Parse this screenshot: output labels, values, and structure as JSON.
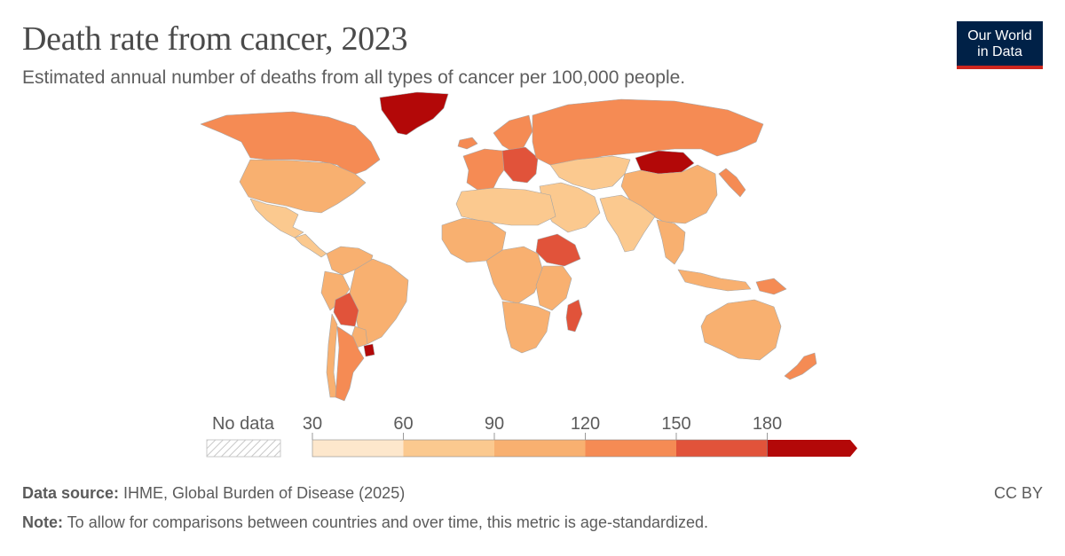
{
  "title": "Death rate from cancer, 2023",
  "subtitle": "Estimated annual number of deaths from all types of cancer per 100,000 people.",
  "logo": {
    "line1": "Our World",
    "line2": "in Data",
    "background": "#002147",
    "accent": "#ce261e"
  },
  "legend": {
    "no_data_label": "No data",
    "ticks": [
      "30",
      "60",
      "90",
      "120",
      "150",
      "180"
    ],
    "bins": [
      {
        "range": "30–60",
        "color": "#fde7cc"
      },
      {
        "range": "60–90",
        "color": "#fbc98f"
      },
      {
        "range": "90–120",
        "color": "#f8b070"
      },
      {
        "range": "120–150",
        "color": "#f58b54"
      },
      {
        "range": "150–180",
        "color": "#e1533a"
      },
      {
        "range": "180+",
        "color": "#b30808"
      }
    ]
  },
  "map": {
    "regions": [
      {
        "name": "Greenland",
        "bin": 5
      },
      {
        "name": "Canada",
        "bin": 3
      },
      {
        "name": "United States",
        "bin": 2
      },
      {
        "name": "Mexico",
        "bin": 1
      },
      {
        "name": "Central America",
        "bin": 1
      },
      {
        "name": "Colombia & Venezuela",
        "bin": 2
      },
      {
        "name": "Brazil",
        "bin": 2
      },
      {
        "name": "Peru",
        "bin": 2
      },
      {
        "name": "Bolivia",
        "bin": 4
      },
      {
        "name": "Argentina",
        "bin": 3
      },
      {
        "name": "Chile",
        "bin": 2
      },
      {
        "name": "Paraguay",
        "bin": 2
      },
      {
        "name": "Uruguay",
        "bin": 5
      },
      {
        "name": "Western Europe",
        "bin": 3
      },
      {
        "name": "Central Europe",
        "bin": 4
      },
      {
        "name": "Nordic countries",
        "bin": 3
      },
      {
        "name": "Russia",
        "bin": 3
      },
      {
        "name": "Kazakhstan & Central Asia",
        "bin": 1
      },
      {
        "name": "Mongolia",
        "bin": 5
      },
      {
        "name": "China",
        "bin": 2
      },
      {
        "name": "India & South Asia",
        "bin": 1
      },
      {
        "name": "Middle East",
        "bin": 1
      },
      {
        "name": "North Africa",
        "bin": 1
      },
      {
        "name": "West Africa",
        "bin": 2
      },
      {
        "name": "Central Africa",
        "bin": 2
      },
      {
        "name": "Ethiopia & Horn of Africa",
        "bin": 4
      },
      {
        "name": "East Africa",
        "bin": 2
      },
      {
        "name": "Southern Africa",
        "bin": 2
      },
      {
        "name": "Madagascar",
        "bin": 4
      },
      {
        "name": "Southeast Asia",
        "bin": 2
      },
      {
        "name": "Indonesia & Philippines",
        "bin": 2
      },
      {
        "name": "Papua New Guinea",
        "bin": 3
      },
      {
        "name": "Japan & Korea",
        "bin": 3
      },
      {
        "name": "Australia",
        "bin": 2
      },
      {
        "name": "New Zealand",
        "bin": 3
      },
      {
        "name": "Iceland",
        "bin": 3
      }
    ]
  },
  "footer": {
    "source_label": "Data source:",
    "source_text": " IHME, Global Burden of Disease (2025)",
    "note_label": "Note:",
    "note_text": " To allow for comparisons between countries and over time, this metric is age-standardized.",
    "license": "CC BY"
  }
}
